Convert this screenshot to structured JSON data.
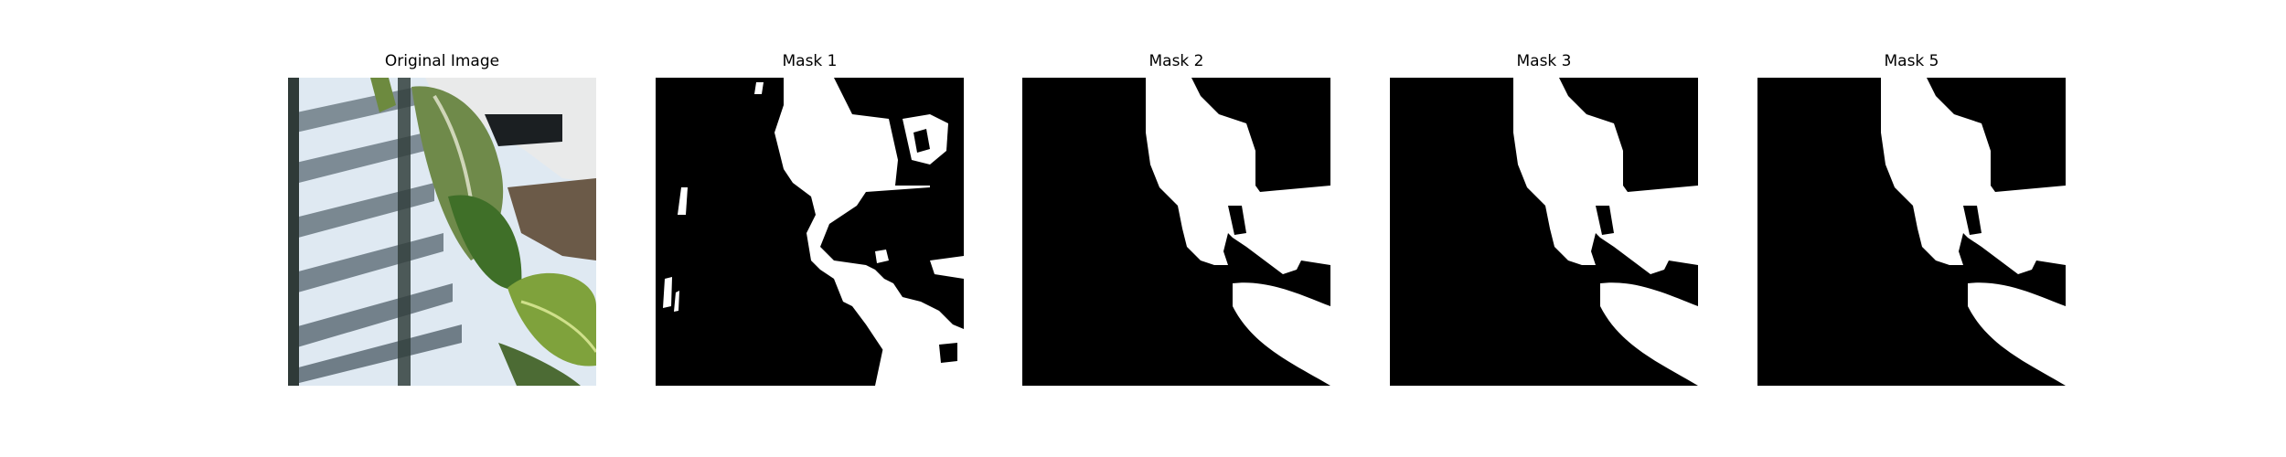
{
  "figure": {
    "panels": [
      {
        "title": "Original Image",
        "kind": "photo",
        "subject": "leaf-near-window-blinds"
      },
      {
        "title": "Mask 1",
        "kind": "mask"
      },
      {
        "title": "Mask 2",
        "kind": "mask"
      },
      {
        "title": "Mask 3",
        "kind": "mask"
      },
      {
        "title": "Mask 5",
        "kind": "mask"
      }
    ]
  },
  "colors": {
    "background": "#ffffff",
    "mask_background": "#000000",
    "mask_foreground": "#ffffff",
    "leaf_green": "#4f7a2e",
    "window_light": "#dfe9f2",
    "blind_frame": "#2f3a38"
  }
}
